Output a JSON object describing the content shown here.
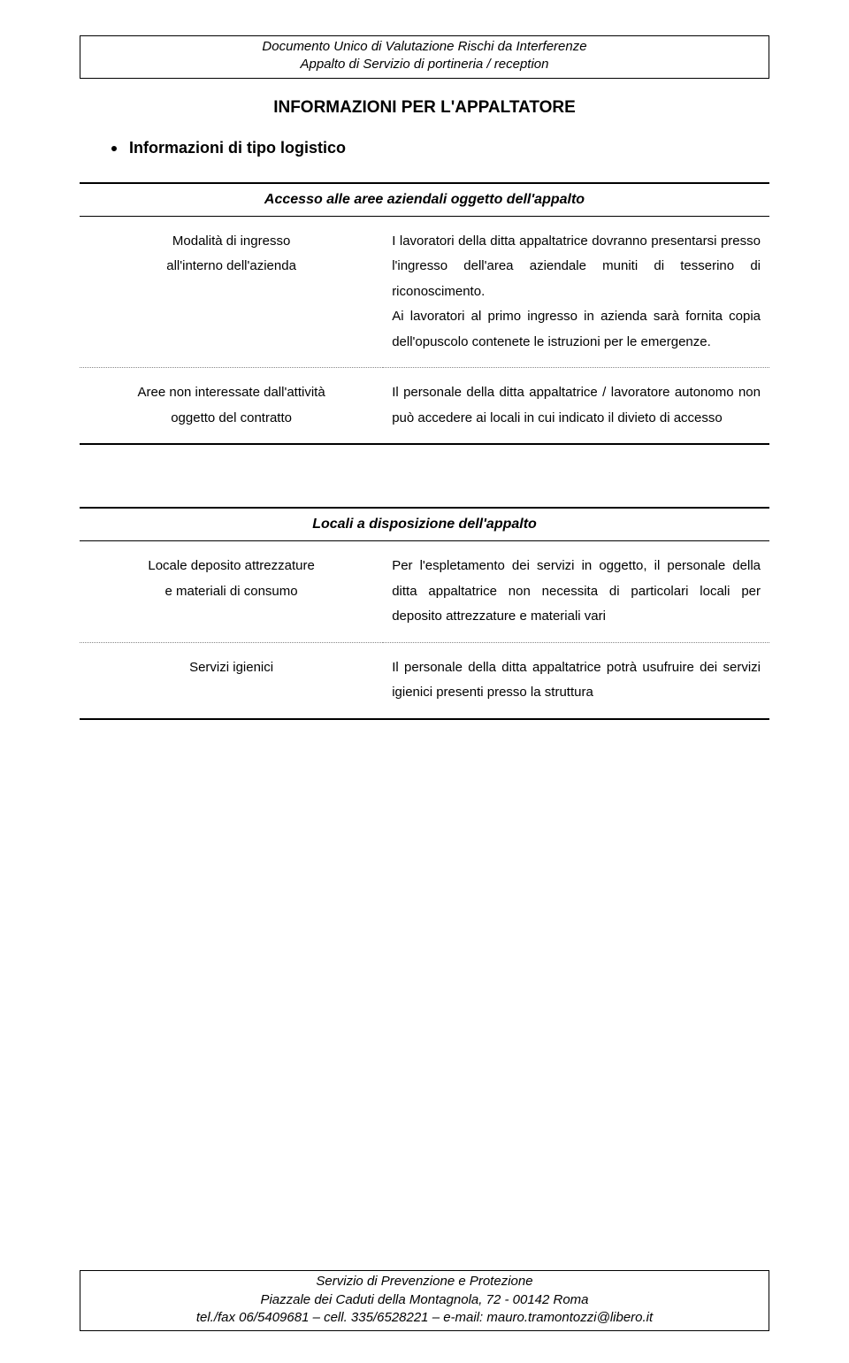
{
  "header": {
    "line1": "Documento Unico di Valutazione Rischi da Interferenze",
    "line2": "Appalto di Servizio di portineria / reception"
  },
  "page_title": "INFORMAZIONI PER L'APPALTATORE",
  "section_bullet": "Informazioni di tipo logistico",
  "table1": {
    "caption": "Accesso alle aree aziendali oggetto dell'appalto",
    "rows": [
      {
        "left_line1": "Modalità di ingresso",
        "left_line2": "all'interno dell'azienda",
        "right": "I lavoratori della ditta appaltatrice dovranno presentarsi presso l'ingresso dell'area aziendale muniti di tesserino di riconoscimento.\nAi lavoratori al primo ingresso in azienda sarà fornita copia dell'opuscolo contenete le istruzioni per le emergenze."
      },
      {
        "left_line1": "Aree non interessate dall'attività",
        "left_line2": "oggetto del contratto",
        "right": "Il personale della ditta appaltatrice / lavoratore autonomo non può accedere ai locali in cui indicato il divieto di accesso"
      }
    ]
  },
  "table2": {
    "caption": "Locali a disposizione dell'appalto",
    "rows": [
      {
        "left_line1": "Locale deposito attrezzature",
        "left_line2": "e materiali di consumo",
        "right": "Per l'espletamento dei servizi in oggetto, il personale della ditta appaltatrice non necessita di particolari locali per deposito attrezzature e materiali vari"
      },
      {
        "left_line1": "Servizi igienici",
        "left_line2": "",
        "right": "Il personale della ditta appaltatrice potrà usufruire dei servizi igienici presenti presso la struttura"
      }
    ]
  },
  "footer": {
    "line1": "Servizio di Prevenzione e Protezione",
    "line2": "Piazzale dei Caduti della Montagnola, 72 - 00142 Roma",
    "line3": "tel./fax 06/5409681 – cell. 335/6528221 – e-mail: mauro.tramontozzi@libero.it"
  }
}
